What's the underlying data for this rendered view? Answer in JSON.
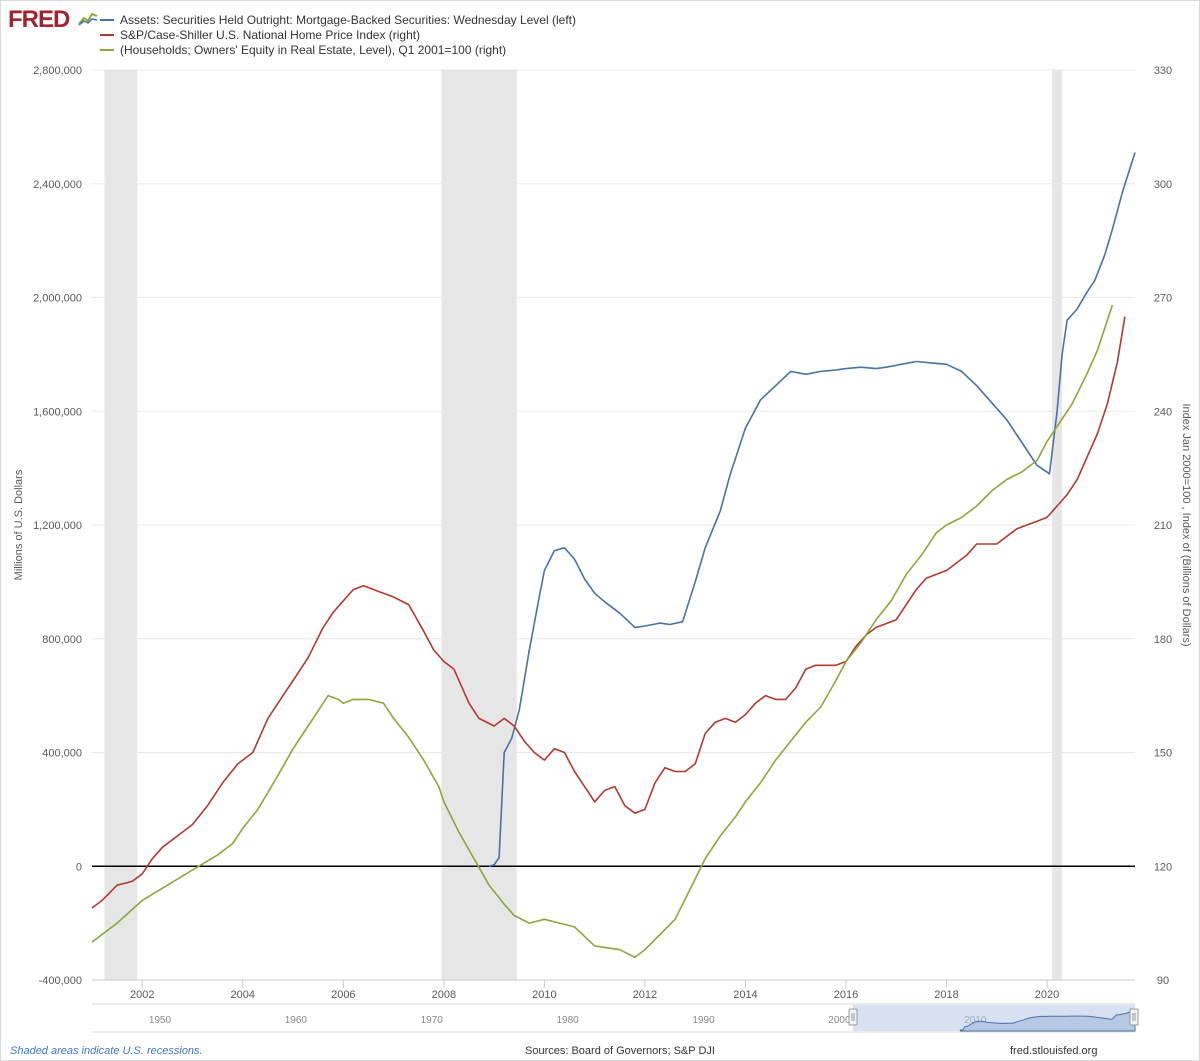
{
  "branding": {
    "logo_text": "FRED",
    "logo_icon": "fred-chart-icon"
  },
  "colors": {
    "blue": "#4572a7",
    "red": "#b03a2e",
    "green": "#8aa63c",
    "recession": "#e6e6e6",
    "grid": "#e8e8e8",
    "zero": "#000000",
    "navigator": "#a9bde0"
  },
  "footer": {
    "recession_note": "Shaded areas indicate U.S. recessions.",
    "sources": "Sources: Board of Governors; S&P DJI",
    "site": "fred.stlouisfed.org"
  },
  "chart_data": {
    "type": "line",
    "title": "",
    "ylabel_left": "Millions of U.S. Dollars",
    "ylabel_right": "Index Jan 2000=100 , Index of (Billions of Dollars)",
    "xlim": [
      2001.0,
      2021.75
    ],
    "ylim_left": [
      -400000,
      2800000
    ],
    "ylim_right": [
      90,
      330
    ],
    "x_ticks": [
      "2002",
      "2004",
      "2006",
      "2008",
      "2010",
      "2012",
      "2014",
      "2016",
      "2018",
      "2020"
    ],
    "y_left_ticks": [
      "-400,000",
      "0",
      "400,000",
      "800,000",
      "1,200,000",
      "1,600,000",
      "2,000,000",
      "2,400,000",
      "2,800,000"
    ],
    "y_right_ticks": [
      "90",
      "120",
      "150",
      "180",
      "210",
      "240",
      "270",
      "300",
      "330"
    ],
    "navigator_ticks": [
      "1950",
      "1960",
      "1970",
      "1980",
      "1990",
      "2000",
      "2010"
    ],
    "recessions": [
      [
        2001.25,
        2001.9
      ],
      [
        2007.95,
        2009.45
      ],
      [
        2020.1,
        2020.3
      ]
    ],
    "series": [
      {
        "name": "Assets: Securities Held Outright: Mortgage-Backed Securities: Wednesday Level (left)",
        "axis": "left",
        "color": "#4572a7",
        "x": [
          2008.9,
          2009.0,
          2009.1,
          2009.2,
          2009.35,
          2009.5,
          2009.7,
          2009.9,
          2010.0,
          2010.2,
          2010.4,
          2010.6,
          2010.8,
          2011.0,
          2011.2,
          2011.5,
          2011.8,
          2012.0,
          2012.3,
          2012.5,
          2012.75,
          2013.0,
          2013.2,
          2013.5,
          2013.7,
          2014.0,
          2014.3,
          2014.6,
          2014.9,
          2015.2,
          2015.5,
          2015.8,
          2016.0,
          2016.3,
          2016.6,
          2016.8,
          2017.1,
          2017.4,
          2017.7,
          2018.0,
          2018.3,
          2018.6,
          2018.9,
          2019.2,
          2019.5,
          2019.8,
          2020.05,
          2020.2,
          2020.3,
          2020.4,
          2020.6,
          2020.8,
          2020.95,
          2021.15,
          2021.3,
          2021.5,
          2021.75
        ],
        "values": [
          0,
          5000,
          30000,
          400000,
          450000,
          550000,
          760000,
          950000,
          1040000,
          1110000,
          1120000,
          1080000,
          1010000,
          960000,
          930000,
          890000,
          840000,
          845000,
          855000,
          850000,
          860000,
          1000000,
          1120000,
          1250000,
          1380000,
          1540000,
          1640000,
          1690000,
          1740000,
          1730000,
          1740000,
          1745000,
          1750000,
          1755000,
          1750000,
          1755000,
          1765000,
          1775000,
          1770000,
          1765000,
          1740000,
          1690000,
          1630000,
          1570000,
          1490000,
          1410000,
          1380000,
          1600000,
          1800000,
          1920000,
          1960000,
          2020000,
          2060000,
          2150000,
          2240000,
          2370000,
          2510000
        ]
      },
      {
        "name": "S&P/Case-Shiller U.S. National Home Price Index (right)",
        "axis": "right",
        "color": "#b03a2e",
        "x": [
          2001.0,
          2001.2,
          2001.5,
          2001.8,
          2002.0,
          2002.2,
          2002.4,
          2002.7,
          2003.0,
          2003.3,
          2003.6,
          2003.9,
          2004.2,
          2004.5,
          2004.8,
          2005.0,
          2005.3,
          2005.6,
          2005.8,
          2006.0,
          2006.2,
          2006.4,
          2006.6,
          2006.8,
          2007.0,
          2007.3,
          2007.6,
          2007.8,
          2008.0,
          2008.2,
          2008.5,
          2008.7,
          2009.0,
          2009.2,
          2009.4,
          2009.6,
          2009.8,
          2010.0,
          2010.2,
          2010.4,
          2010.6,
          2010.8,
          2011.0,
          2011.2,
          2011.4,
          2011.6,
          2011.8,
          2012.0,
          2012.2,
          2012.4,
          2012.6,
          2012.8,
          2013.0,
          2013.2,
          2013.4,
          2013.6,
          2013.8,
          2014.0,
          2014.2,
          2014.4,
          2014.6,
          2014.8,
          2015.0,
          2015.2,
          2015.4,
          2015.6,
          2015.8,
          2016.0,
          2016.2,
          2016.4,
          2016.6,
          2016.8,
          2017.0,
          2017.2,
          2017.4,
          2017.6,
          2017.8,
          2018.0,
          2018.2,
          2018.4,
          2018.6,
          2018.8,
          2019.0,
          2019.2,
          2019.4,
          2019.6,
          2019.8,
          2020.0,
          2020.2,
          2020.4,
          2020.6,
          2020.8,
          2021.0,
          2021.2,
          2021.4,
          2021.55
        ],
        "values": [
          109,
          111,
          115,
          116,
          118,
          122,
          125,
          128,
          131,
          136,
          142,
          147,
          150,
          159,
          165,
          169,
          175,
          183,
          187,
          190,
          193,
          194,
          193,
          192,
          191,
          189,
          182,
          177,
          174,
          172,
          163,
          159,
          157,
          159,
          157,
          153,
          150,
          148,
          151,
          150,
          145,
          141,
          137,
          140,
          141,
          136,
          134,
          135,
          142,
          146,
          145,
          145,
          147,
          155,
          158,
          159,
          158,
          160,
          163,
          165,
          164,
          164,
          167,
          172,
          173,
          173,
          173,
          174,
          178,
          181,
          183,
          184,
          185,
          189,
          193,
          196,
          197,
          198,
          200,
          202,
          205,
          205,
          205,
          207,
          209,
          210,
          211,
          212,
          215,
          218,
          222,
          228,
          234,
          242,
          253,
          265
        ]
      },
      {
        "name": "(Households; Owners' Equity in Real Estate, Level), Q1 2001=100 (right)",
        "axis": "right",
        "color": "#8aa63c",
        "x": [
          2001.0,
          2001.5,
          2002.0,
          2002.5,
          2003.0,
          2003.5,
          2003.8,
          2004.0,
          2004.3,
          2004.7,
          2005.0,
          2005.3,
          2005.5,
          2005.7,
          2005.9,
          2006.0,
          2006.2,
          2006.5,
          2006.8,
          2007.0,
          2007.3,
          2007.6,
          2007.9,
          2008.0,
          2008.3,
          2008.6,
          2008.9,
          2009.2,
          2009.4,
          2009.7,
          2010.0,
          2010.3,
          2010.6,
          2011.0,
          2011.5,
          2011.8,
          2012.0,
          2012.3,
          2012.6,
          2012.9,
          2013.2,
          2013.5,
          2013.8,
          2014.0,
          2014.3,
          2014.6,
          2014.9,
          2015.2,
          2015.5,
          2015.8,
          2016.0,
          2016.3,
          2016.6,
          2016.9,
          2017.2,
          2017.5,
          2017.8,
          2018.0,
          2018.3,
          2018.6,
          2018.9,
          2019.2,
          2019.5,
          2019.8,
          2020.0,
          2020.2,
          2020.5,
          2020.8,
          2021.0,
          2021.3
        ],
        "values": [
          100,
          105,
          111,
          115,
          119,
          123,
          126,
          130,
          135,
          144,
          151,
          157,
          161,
          165,
          164,
          163,
          164,
          164,
          163,
          159,
          154,
          148,
          141,
          137,
          129,
          122,
          115,
          110,
          107,
          105,
          106,
          105,
          104,
          99,
          98,
          96,
          98,
          102,
          106,
          114,
          122,
          128,
          133,
          137,
          142,
          148,
          153,
          158,
          162,
          169,
          174,
          179,
          185,
          190,
          197,
          202,
          208,
          210,
          212,
          215,
          219,
          222,
          224,
          227,
          232,
          236,
          242,
          250,
          256,
          268
        ]
      }
    ]
  }
}
